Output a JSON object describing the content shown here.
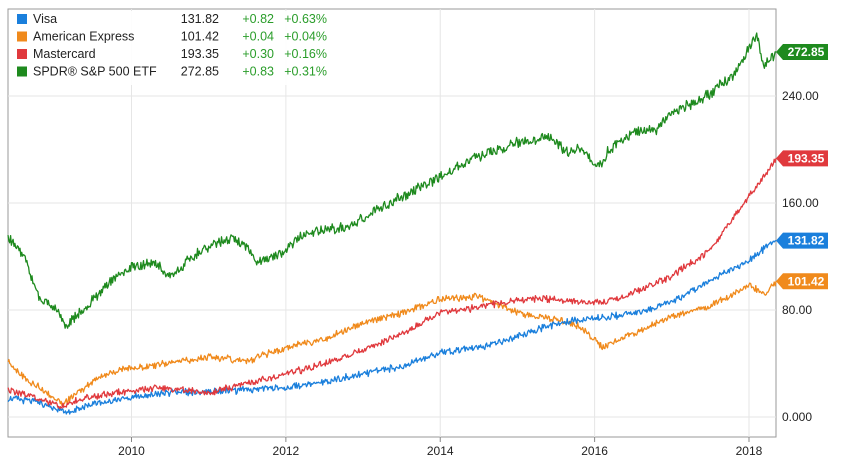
{
  "chart_data": {
    "type": "line",
    "title": "",
    "xlabel": "",
    "ylabel": "",
    "xlim": [
      2008.4,
      2018.35
    ],
    "ylim": [
      -15,
      305
    ],
    "x_ticks": [
      {
        "value": 2010,
        "label": "2010"
      },
      {
        "value": 2012,
        "label": "2012"
      },
      {
        "value": 2014,
        "label": "2014"
      },
      {
        "value": 2016,
        "label": "2016"
      },
      {
        "value": 2018,
        "label": "2018"
      }
    ],
    "y_ticks": [
      {
        "value": 0,
        "label": "0.000"
      },
      {
        "value": 80,
        "label": "80.00"
      },
      {
        "value": 160,
        "label": "160.00"
      },
      {
        "value": 240,
        "label": "240.00"
      }
    ],
    "grid": true,
    "legend_position": "top-left",
    "series": [
      {
        "name": "Visa",
        "color": "#1a7fdc",
        "last": "131.82",
        "chg": "+0.82",
        "pct": "+0.63%",
        "points": [
          [
            2008.4,
            14
          ],
          [
            2008.8,
            11
          ],
          [
            2009.0,
            6
          ],
          [
            2009.2,
            4
          ],
          [
            2009.5,
            10
          ],
          [
            2010.0,
            15
          ],
          [
            2010.5,
            18
          ],
          [
            2011.0,
            19
          ],
          [
            2011.5,
            20
          ],
          [
            2012.0,
            22
          ],
          [
            2012.5,
            26
          ],
          [
            2013.0,
            32
          ],
          [
            2013.5,
            38
          ],
          [
            2014.0,
            48
          ],
          [
            2014.5,
            52
          ],
          [
            2015.0,
            60
          ],
          [
            2015.5,
            70
          ],
          [
            2016.0,
            74
          ],
          [
            2016.5,
            77
          ],
          [
            2017.0,
            86
          ],
          [
            2017.5,
            102
          ],
          [
            2018.0,
            117
          ],
          [
            2018.2,
            126
          ],
          [
            2018.35,
            131.82
          ]
        ]
      },
      {
        "name": "American Express",
        "color": "#f08a1c",
        "last": "101.42",
        "chg": "+0.04",
        "pct": "+0.04%",
        "points": [
          [
            2008.4,
            42
          ],
          [
            2008.6,
            30
          ],
          [
            2008.9,
            18
          ],
          [
            2009.1,
            10
          ],
          [
            2009.3,
            18
          ],
          [
            2009.6,
            30
          ],
          [
            2010.0,
            37
          ],
          [
            2010.5,
            40
          ],
          [
            2011.0,
            45
          ],
          [
            2011.5,
            42
          ],
          [
            2012.0,
            52
          ],
          [
            2012.5,
            58
          ],
          [
            2013.0,
            70
          ],
          [
            2013.5,
            78
          ],
          [
            2014.0,
            88
          ],
          [
            2014.5,
            90
          ],
          [
            2015.0,
            78
          ],
          [
            2015.5,
            73
          ],
          [
            2015.8,
            68
          ],
          [
            2016.1,
            52
          ],
          [
            2016.3,
            58
          ],
          [
            2016.6,
            65
          ],
          [
            2017.0,
            75
          ],
          [
            2017.5,
            83
          ],
          [
            2018.0,
            98
          ],
          [
            2018.2,
            92
          ],
          [
            2018.35,
            101.42
          ]
        ]
      },
      {
        "name": "Mastercard",
        "color": "#e0393d",
        "last": "193.35",
        "chg": "+0.30",
        "pct": "+0.16%",
        "points": [
          [
            2008.4,
            20
          ],
          [
            2008.8,
            14
          ],
          [
            2009.1,
            8
          ],
          [
            2009.4,
            14
          ],
          [
            2009.8,
            18
          ],
          [
            2010.3,
            22
          ],
          [
            2011.0,
            18
          ],
          [
            2011.5,
            25
          ],
          [
            2012.0,
            32
          ],
          [
            2012.5,
            40
          ],
          [
            2013.0,
            50
          ],
          [
            2013.5,
            62
          ],
          [
            2014.0,
            78
          ],
          [
            2014.5,
            82
          ],
          [
            2015.0,
            88
          ],
          [
            2015.5,
            88
          ],
          [
            2016.0,
            85
          ],
          [
            2016.3,
            88
          ],
          [
            2016.7,
            98
          ],
          [
            2017.0,
            105
          ],
          [
            2017.5,
            125
          ],
          [
            2018.0,
            165
          ],
          [
            2018.2,
            180
          ],
          [
            2018.35,
            193.35
          ]
        ]
      },
      {
        "name": "SPDR® S&P 500 ETF",
        "color": "#1e8a1e",
        "last": "272.85",
        "chg": "+0.83",
        "pct": "+0.31%",
        "points": [
          [
            2008.4,
            135
          ],
          [
            2008.6,
            120
          ],
          [
            2008.8,
            90
          ],
          [
            2009.0,
            82
          ],
          [
            2009.15,
            68
          ],
          [
            2009.4,
            82
          ],
          [
            2009.7,
            100
          ],
          [
            2010.0,
            112
          ],
          [
            2010.3,
            115
          ],
          [
            2010.5,
            105
          ],
          [
            2010.8,
            120
          ],
          [
            2011.0,
            128
          ],
          [
            2011.3,
            134
          ],
          [
            2011.5,
            128
          ],
          [
            2011.6,
            115
          ],
          [
            2011.9,
            120
          ],
          [
            2012.2,
            136
          ],
          [
            2012.5,
            140
          ],
          [
            2012.8,
            142
          ],
          [
            2013.0,
            148
          ],
          [
            2013.5,
            165
          ],
          [
            2014.0,
            180
          ],
          [
            2014.5,
            195
          ],
          [
            2015.0,
            205
          ],
          [
            2015.4,
            210
          ],
          [
            2015.65,
            198
          ],
          [
            2015.8,
            200
          ],
          [
            2016.05,
            188
          ],
          [
            2016.2,
            200
          ],
          [
            2016.5,
            212
          ],
          [
            2016.8,
            216
          ],
          [
            2017.0,
            227
          ],
          [
            2017.5,
            242
          ],
          [
            2017.8,
            255
          ],
          [
            2018.0,
            275
          ],
          [
            2018.1,
            285
          ],
          [
            2018.2,
            262
          ],
          [
            2018.35,
            272.85
          ]
        ]
      }
    ]
  }
}
